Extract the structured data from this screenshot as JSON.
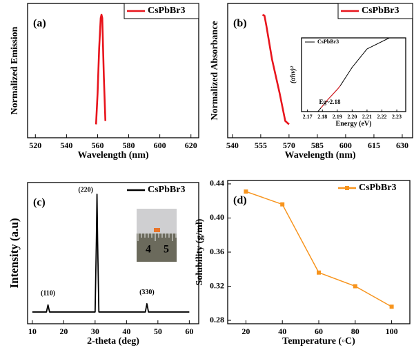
{
  "chart_data": [
    {
      "type": "line",
      "panel_label": "(a)",
      "xlabel": "Wavelength (nm)",
      "ylabel": "Normalized Emission",
      "x": [
        559,
        560,
        561,
        562,
        562.5,
        563,
        564,
        565
      ],
      "series": [
        {
          "name": "CsPbBr3",
          "color": "#e8141c",
          "values": [
            0.02,
            0.3,
            0.7,
            0.97,
            1.0,
            0.97,
            0.45,
            0.05
          ]
        }
      ],
      "xlim": [
        515,
        625
      ],
      "xticks": [
        520,
        540,
        560,
        580,
        600,
        620
      ],
      "ylim": [
        -0.1,
        1.1
      ],
      "legend": "upper right",
      "legend_box": true
    },
    {
      "type": "line",
      "panel_label": "(b)",
      "xlabel": "Wavelength (nm)",
      "ylabel": "Normalized Absorbance",
      "x": [
        556,
        557,
        558,
        561,
        565,
        568,
        570
      ],
      "series": [
        {
          "name": "CsPbBr3",
          "color": "#e8141c",
          "values": [
            1.0,
            0.99,
            0.9,
            0.6,
            0.3,
            0.05,
            0.02
          ]
        }
      ],
      "xlim": [
        537.5,
        635.5
      ],
      "xticks": [
        540,
        555,
        570,
        585,
        600,
        615,
        630
      ],
      "ylim": [
        -0.1,
        1.1
      ],
      "legend": "upper right",
      "legend_box": true,
      "inset": {
        "type": "line",
        "xlabel": "Energy (eV)",
        "ylabel": "(αhν)²",
        "x": [
          2.177,
          2.179,
          2.184,
          2.19,
          2.192,
          2.2,
          2.21,
          2.225
        ],
        "series": [
          {
            "name": "CsPbBr3",
            "color": "#000000",
            "values": [
              0,
              0.05,
              0.17,
              0.3,
              0.35,
              0.6,
              0.85,
              1.0
            ]
          },
          {
            "color": "#e8141c",
            "values": [
              null,
              0.05,
              0.17,
              0.3,
              0.35,
              null,
              null,
              null
            ]
          }
        ],
        "annotations": [
          {
            "text": "Eg~2.18",
            "x": 2.185,
            "y": 0.12,
            "color": "#e8141c"
          }
        ],
        "xlim": [
          2.166,
          2.236
        ],
        "xticks": [
          2.17,
          2.18,
          2.19,
          {
            "value": 2.2,
            "label": "2.20"
          },
          2.21,
          2.22,
          2.23
        ],
        "ylim": [
          0,
          1
        ],
        "legend": "upper left"
      }
    },
    {
      "type": "line",
      "panel_label": "(c)",
      "xlabel": "2-theta (deg)",
      "ylabel": "Intensity (a.u)",
      "x": [
        10,
        14.5,
        15,
        15.5,
        30,
        30.4,
        30.6,
        30.8,
        31.2,
        46,
        46.5,
        47,
        60
      ],
      "series": [
        {
          "name": "CsPbBr3",
          "color": "#000000",
          "values": [
            0,
            0,
            6,
            0,
            0,
            60,
            100,
            60,
            0,
            0,
            7,
            0,
            0
          ]
        }
      ],
      "annotations": [
        {
          "text": "(110)",
          "x": 15,
          "y": 12
        },
        {
          "text": "(220)",
          "x": 27,
          "y": 100
        },
        {
          "text": "(330)",
          "x": 46.5,
          "y": 13
        }
      ],
      "inset_photo_labels": [
        "4",
        "5"
      ],
      "xlim": [
        8.5,
        63
      ],
      "xticks": [
        10,
        20,
        30,
        40,
        50,
        60
      ],
      "ylim": [
        -10,
        110
      ],
      "legend": "upper right",
      "legend_box": false
    },
    {
      "type": "line",
      "panel_label": "(d)",
      "xlabel": "Temperature (◦C)",
      "ylabel": "Solubility (g/ml)",
      "x": [
        20,
        40,
        60,
        80,
        100
      ],
      "series": [
        {
          "name": "CsPbBr3",
          "color": "#f7941d",
          "values": [
            0.431,
            0.416,
            0.336,
            0.32,
            0.296
          ],
          "marker": "square"
        }
      ],
      "xlim": [
        10,
        110
      ],
      "xticks": [
        20,
        40,
        60,
        80,
        100
      ],
      "ylim": [
        0.276,
        0.444
      ],
      "yticks": [
        0.28,
        0.32,
        0.36,
        {
          "value": 0.4,
          "label": "0.40"
        },
        0.44
      ],
      "legend": "upper right",
      "legend_box": false
    }
  ]
}
